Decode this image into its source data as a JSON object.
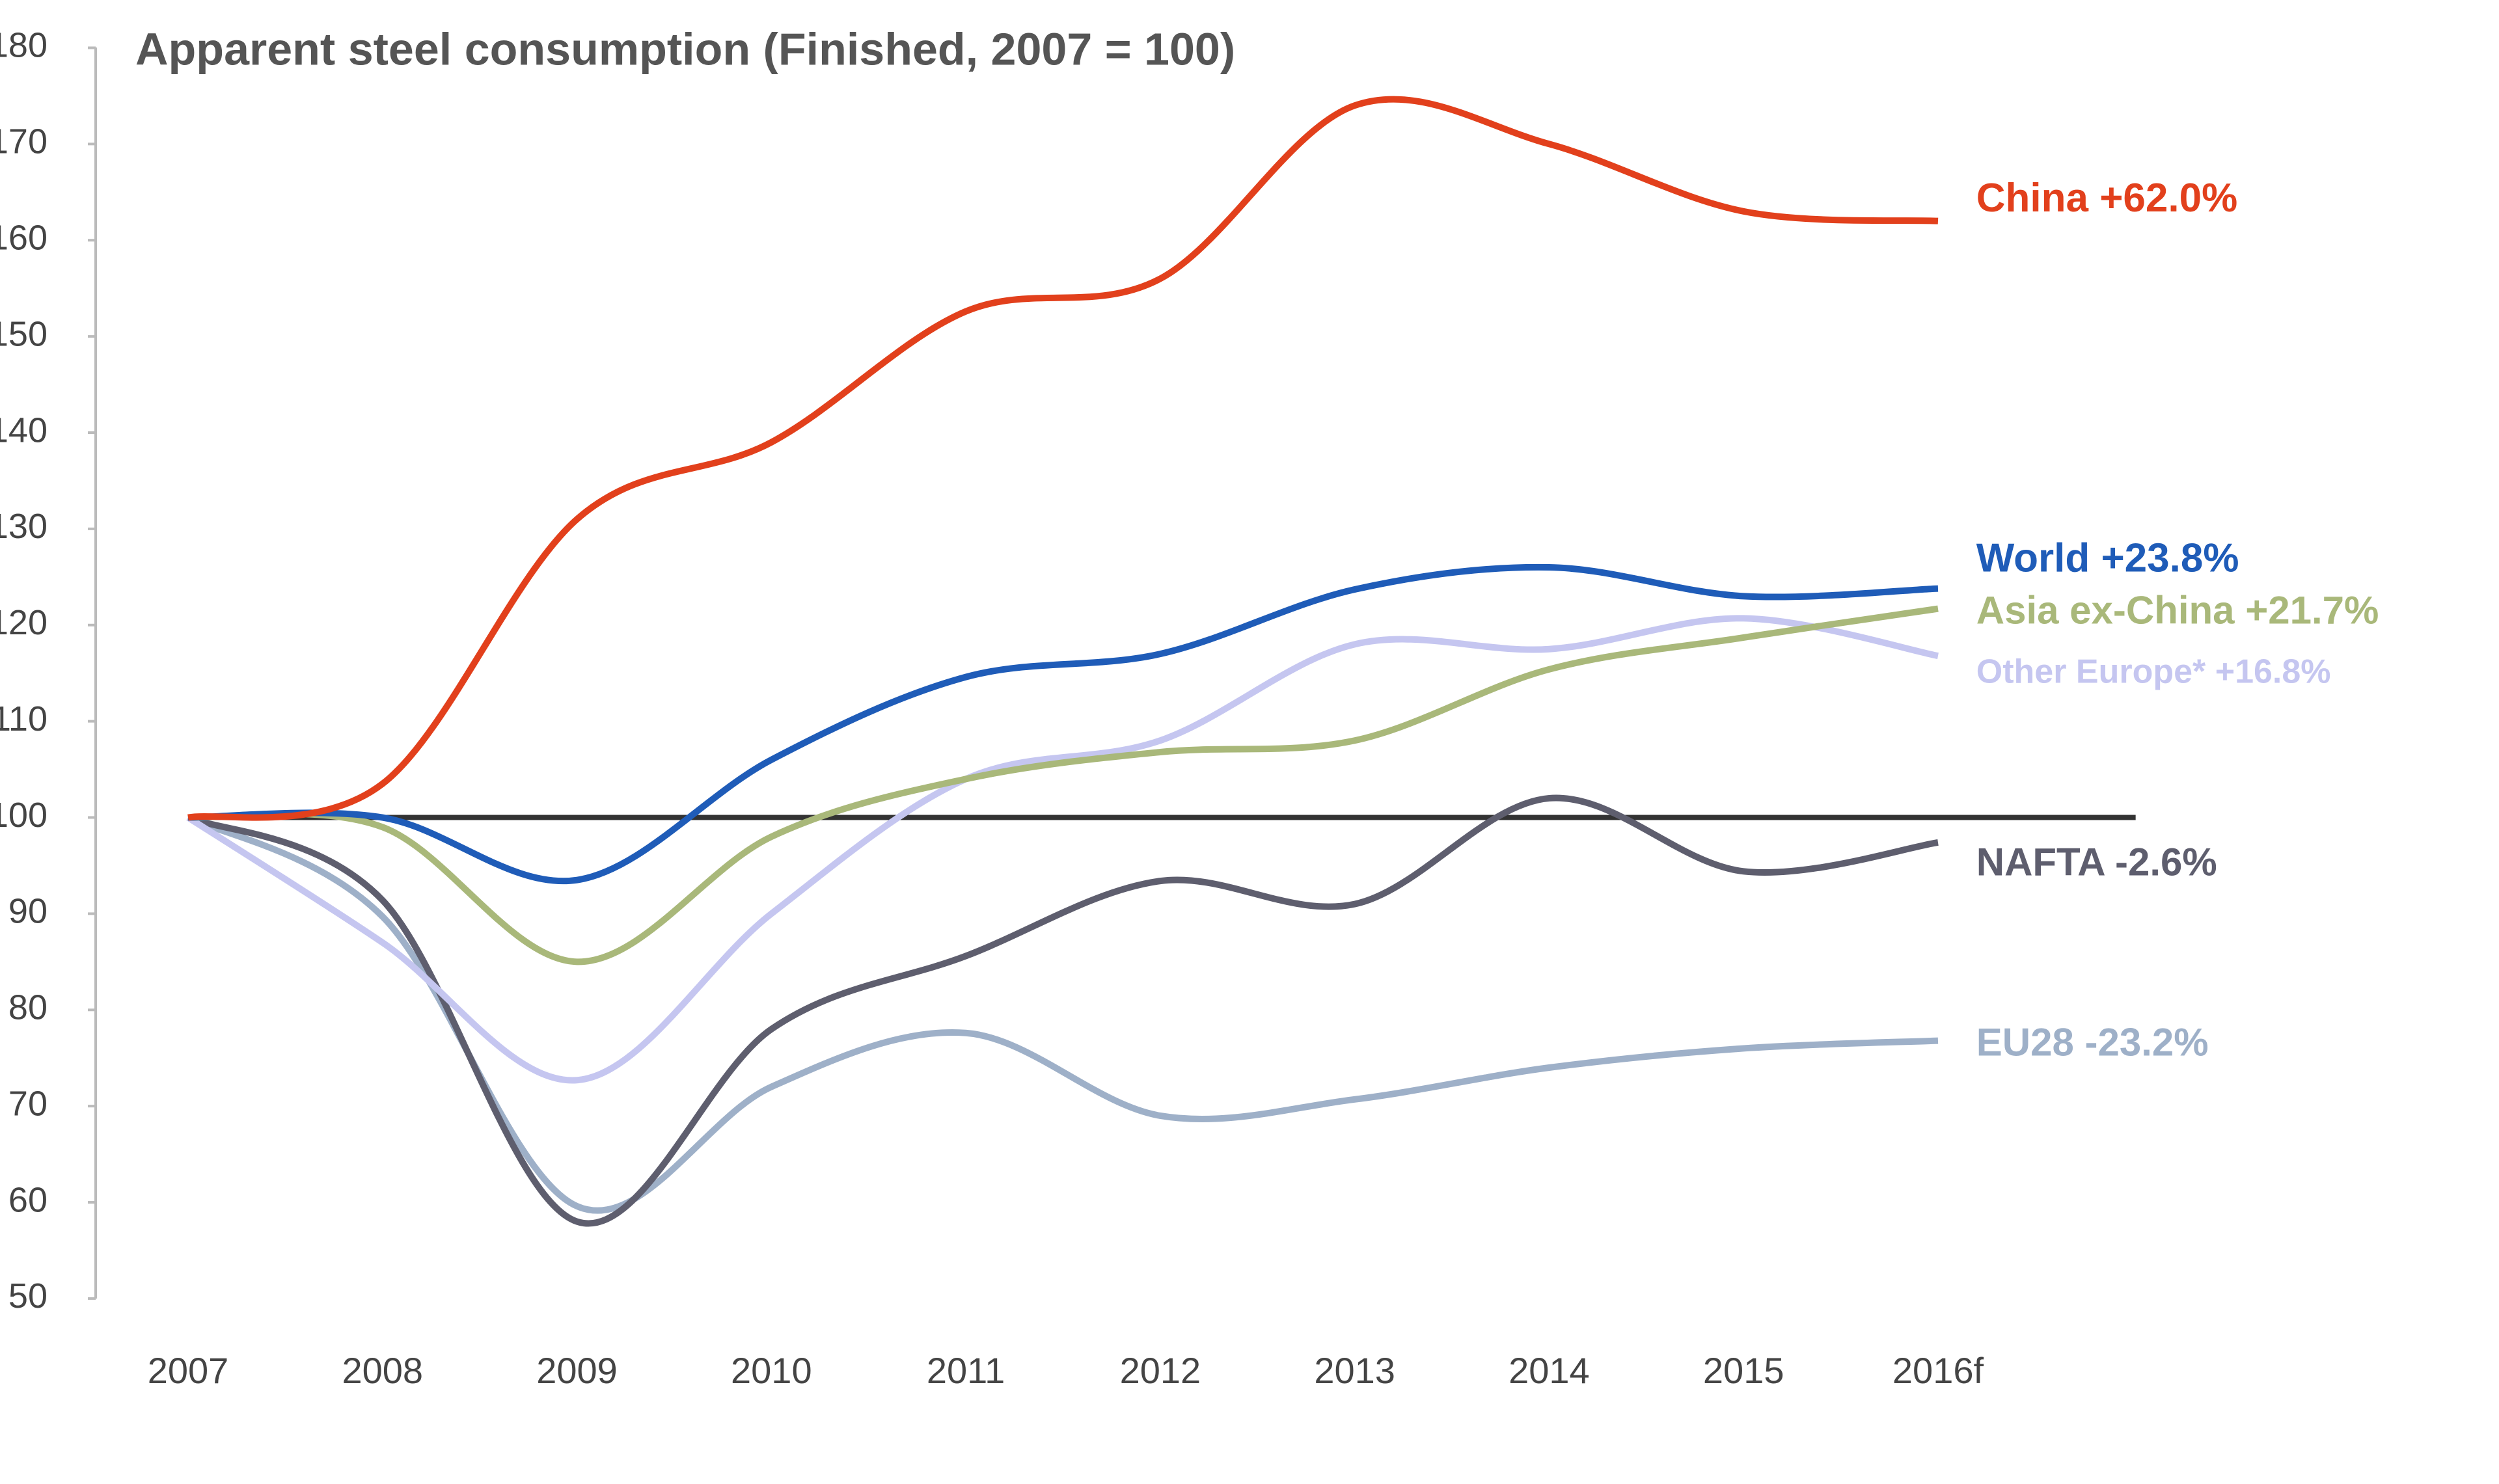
{
  "chart_data": {
    "type": "line",
    "title": "Apparent steel consumption (Finished, 2007 = 100)",
    "categories": [
      "2007",
      "2008",
      "2009",
      "2010",
      "2011",
      "2012",
      "2013",
      "2014",
      "2015",
      "2016f"
    ],
    "series": [
      {
        "name": "China  +62.0%",
        "color": "#e2401c",
        "values": [
          100,
          103.5,
          131,
          139,
          152.6,
          156,
          174,
          170,
          163,
          162
        ]
      },
      {
        "name": "World +23.8%",
        "color": "#1f5cb8",
        "values": [
          100,
          100,
          93.5,
          106,
          114.6,
          117,
          123.7,
          126,
          123,
          123.8
        ]
      },
      {
        "name": "Asia ex-China +21.7%",
        "color": "#a9b87a",
        "values": [
          100,
          99,
          85,
          98,
          104,
          106.8,
          108,
          115.4,
          118.7,
          121.7
        ]
      },
      {
        "name": "Other Europe*  +16.8%",
        "color": "#c5c6f0",
        "values": [
          100,
          87,
          72.7,
          90,
          104,
          108,
          118,
          117.5,
          120.7,
          116.8
        ]
      },
      {
        "name": "NAFTA -2.6%",
        "color": "#5e5e6e",
        "values": [
          100,
          91.4,
          58,
          78,
          85.6,
          93.4,
          91,
          102,
          94.4,
          97.4
        ]
      },
      {
        "name": "EU28 -23.2%",
        "color": "#9eb0c8",
        "values": [
          100,
          89.7,
          59.6,
          72,
          77.6,
          69,
          70.7,
          74,
          76,
          76.8
        ]
      }
    ],
    "reference_line": 100,
    "ylim": [
      50,
      180
    ],
    "yticks": [
      50,
      60,
      70,
      80,
      90,
      100,
      110,
      120,
      130,
      140,
      150,
      160,
      170,
      180
    ]
  }
}
